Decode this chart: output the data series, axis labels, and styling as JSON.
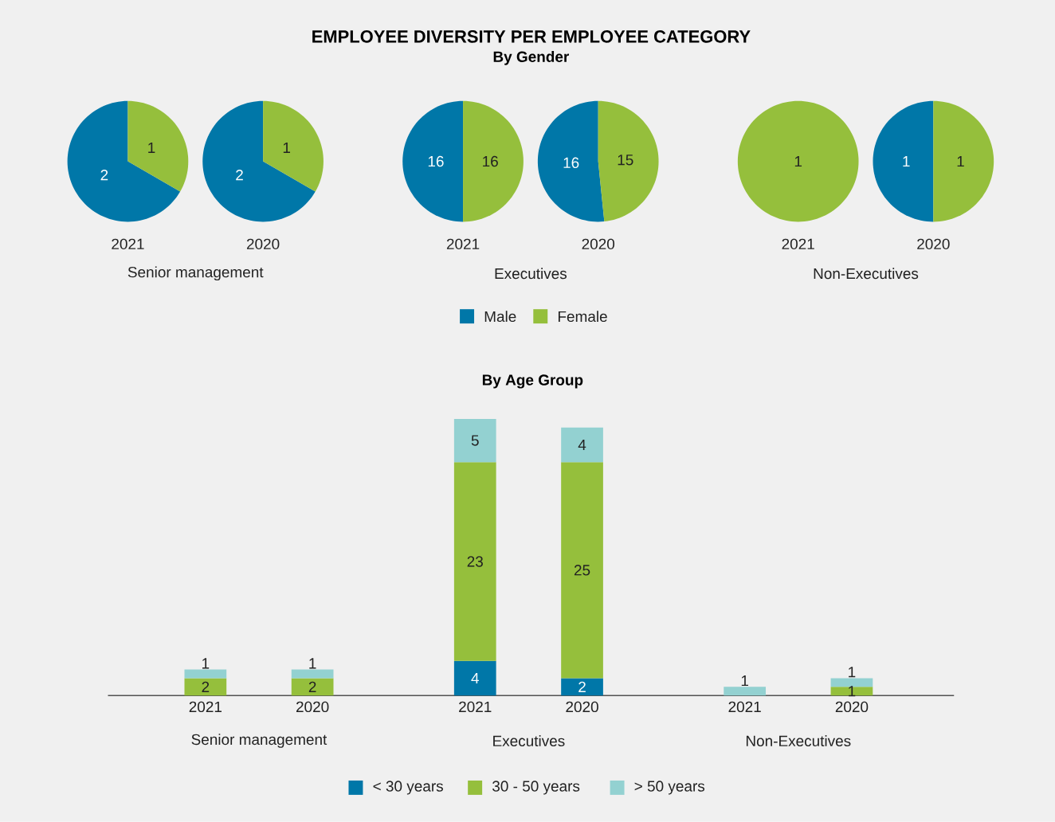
{
  "chart_data": [
    {
      "type": "other",
      "title": "EMPLOYEE DIVERSITY PER EMPLOYEE CATEGORY",
      "subtitle": "By Gender"
    },
    {
      "type": "pie",
      "xlabel": "2021",
      "annotations": [
        "Senior management"
      ],
      "categories": [
        null,
        null
      ],
      "values": [
        2,
        1
      ],
      "colors": [
        "#0077a8",
        "#95bf3c"
      ],
      "data_labels": true
    },
    {
      "type": "pie",
      "xlabel": "2020",
      "categories": [
        null,
        null
      ],
      "values": [
        2,
        1
      ],
      "colors": [
        "#0077a8",
        "#95bf3c"
      ],
      "data_labels": true
    },
    {
      "type": "pie",
      "xlabel": "2021",
      "annotations": [
        "Executives"
      ],
      "categories": [
        "Male",
        "Female"
      ],
      "values": [
        16,
        16
      ],
      "colors": [
        "#0077a8",
        "#95bf3c"
      ],
      "data_labels": true,
      "legend": "bottom"
    },
    {
      "type": "pie",
      "xlabel": "2020",
      "categories": [
        null,
        null
      ],
      "values": [
        16,
        15
      ],
      "colors": [
        "#0077a8",
        "#95bf3c"
      ],
      "data_labels": true
    },
    {
      "type": "pie",
      "xlabel": "2021",
      "annotations": [
        "Non-Executives"
      ],
      "categories": [
        null,
        null
      ],
      "values": [
        0,
        1
      ],
      "colors": [
        "#0077a8",
        "#95bf3c"
      ],
      "data_labels": true
    },
    {
      "type": "pie",
      "xlabel": "2020",
      "categories": [
        null,
        null
      ],
      "values": [
        1,
        1
      ],
      "colors": [
        "#0077a8",
        "#95bf3c"
      ],
      "data_labels": true
    },
    {
      "type": "bar",
      "title": "By Age Group",
      "stacked": true,
      "legend": "bottom",
      "categories": [
        "2021",
        "2020",
        "2021",
        "2020",
        "2021",
        "2020"
      ],
      "annotations": [
        "Senior management",
        "Executives",
        "Non-Executives"
      ],
      "series": [
        {
          "name": "< 30 years",
          "color": "#0077a8",
          "values": [
            0,
            0,
            4,
            2,
            0,
            0
          ],
          "value_labels": [
            null,
            null,
            "4",
            "2",
            null,
            null
          ]
        },
        {
          "name": "30 - 50 years",
          "color": "#95bf3c",
          "values": [
            2,
            2,
            23,
            25,
            0,
            1
          ],
          "value_labels": [
            "2",
            "2",
            "23",
            "25",
            null,
            "1"
          ]
        },
        {
          "name": "> 50 years",
          "color": "#93d1d1",
          "values": [
            1,
            1,
            5,
            4,
            1,
            1
          ],
          "value_labels": [
            "1",
            "1",
            "5",
            "4",
            "1",
            "1"
          ]
        }
      ]
    }
  ]
}
